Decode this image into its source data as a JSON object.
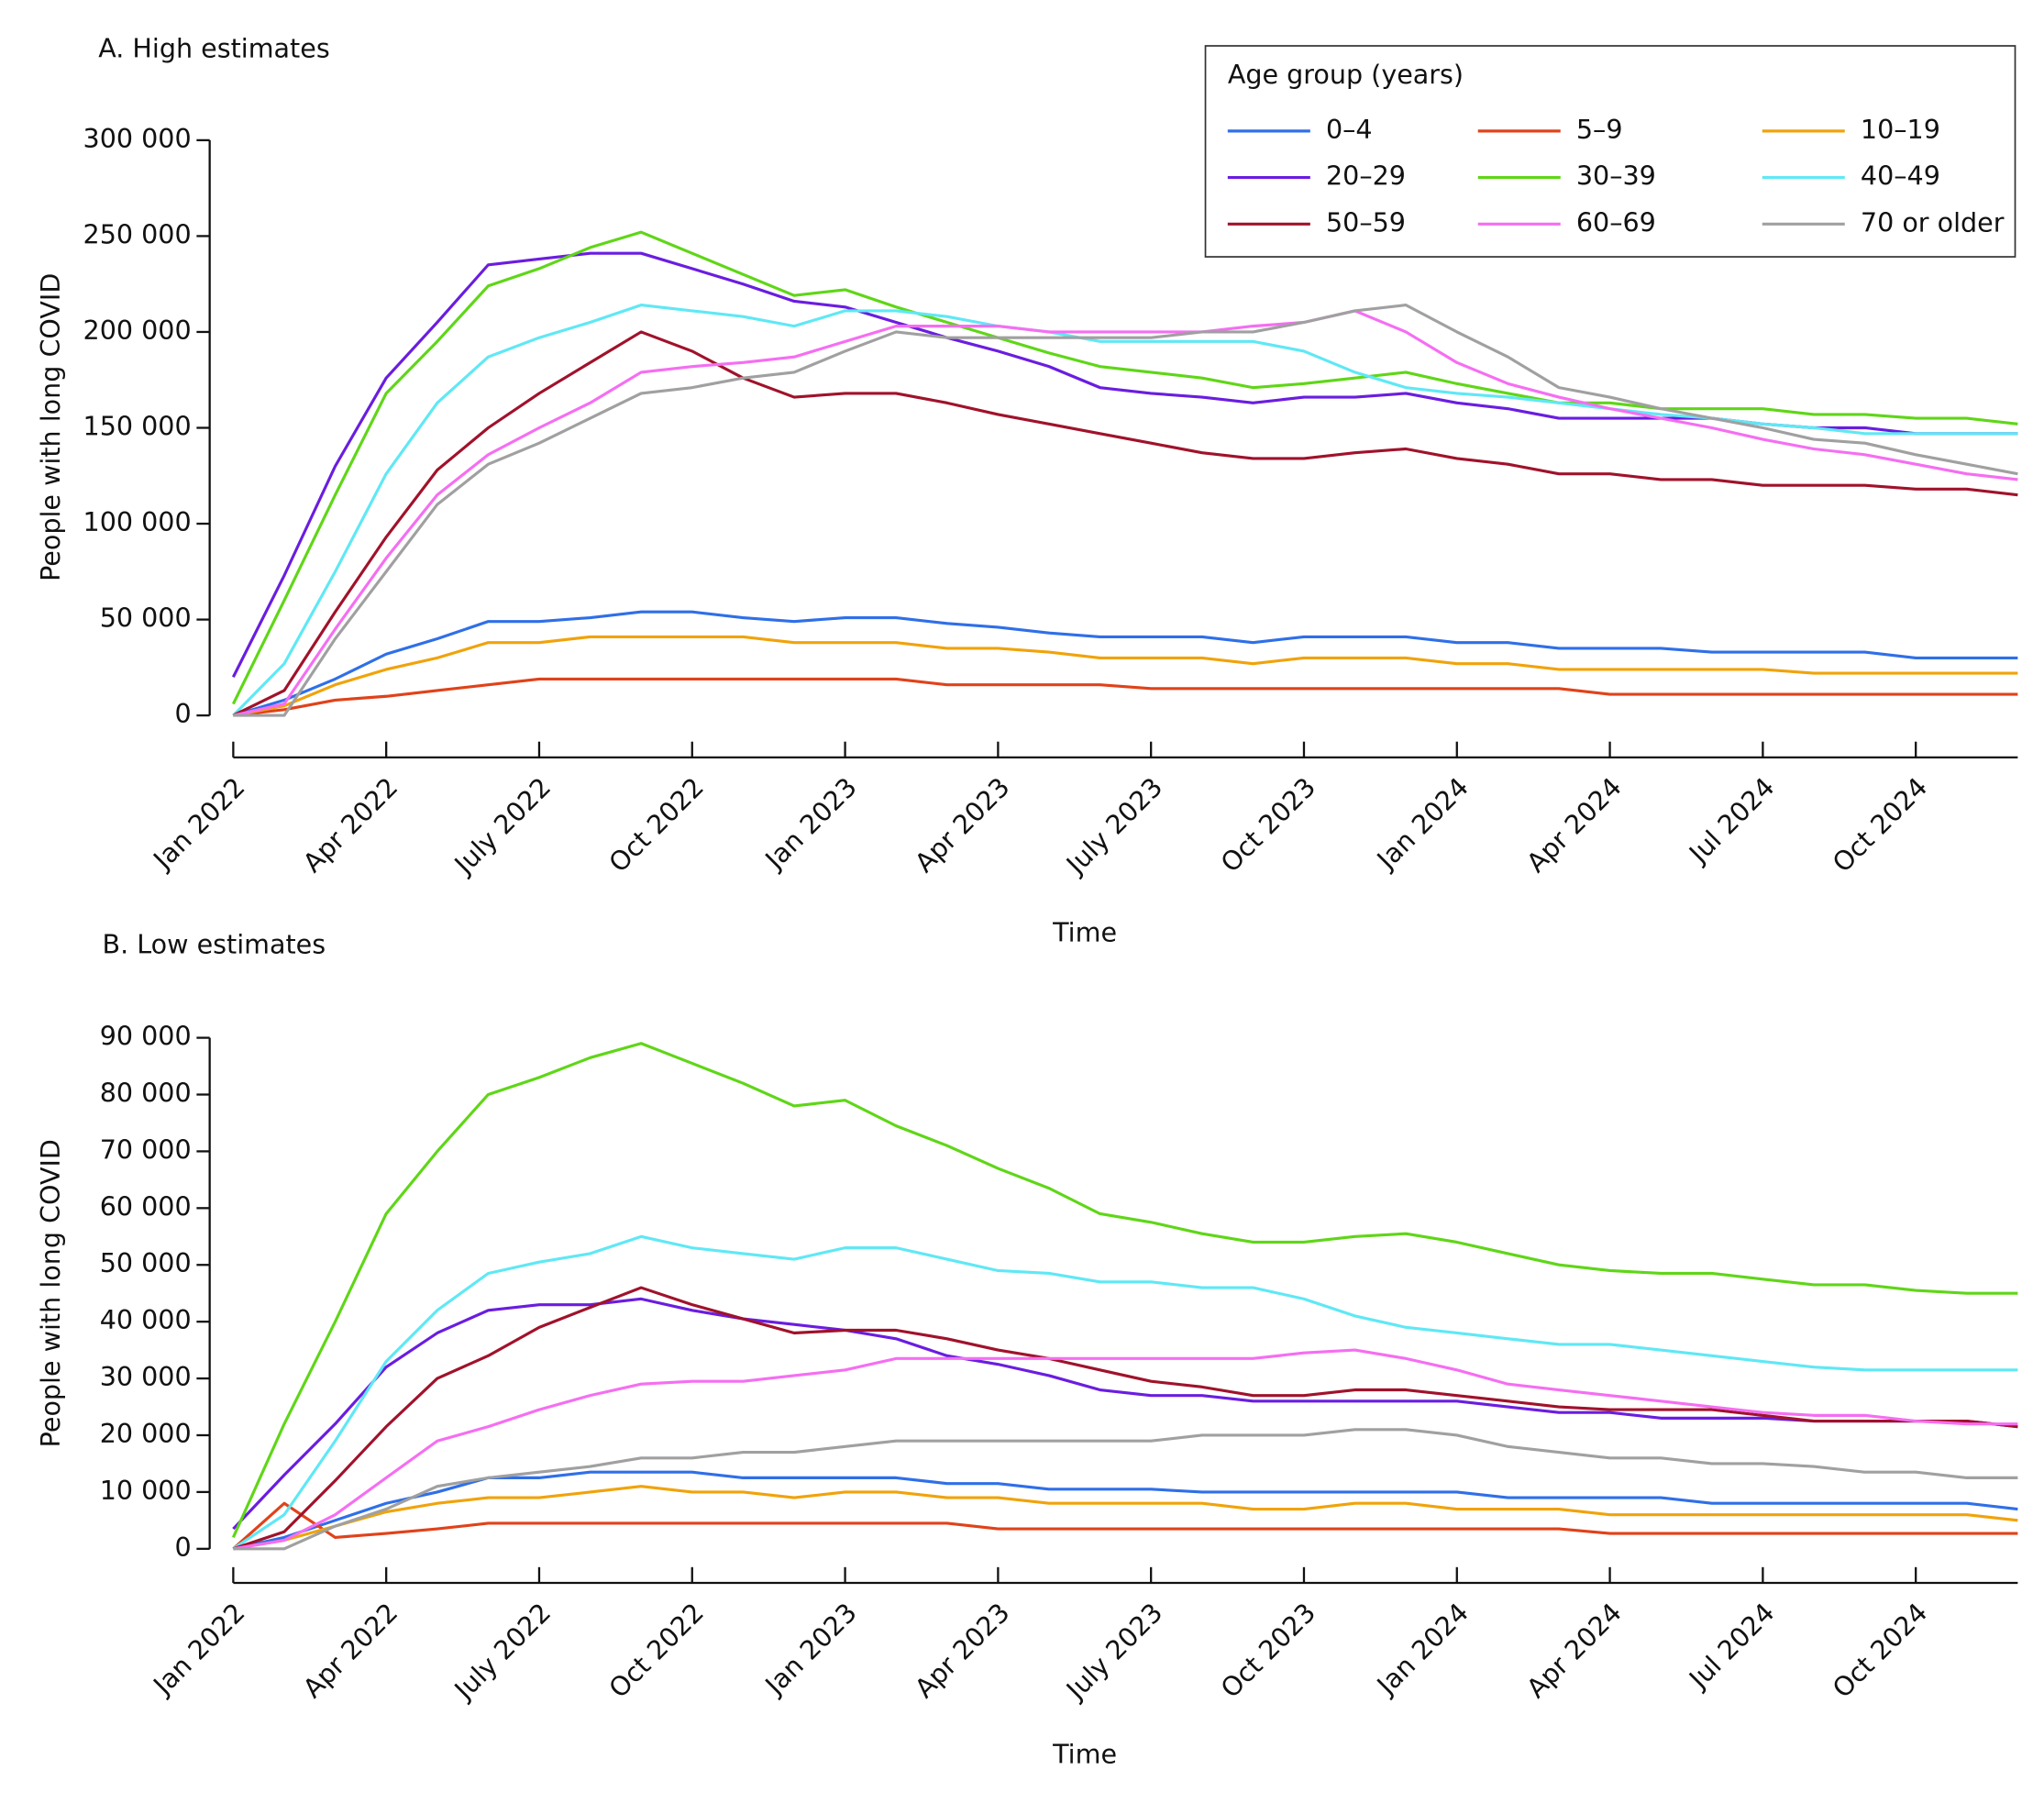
{
  "chart_data": [
    {
      "type": "line",
      "title": "A. High estimates",
      "y_label": "People with long COVID",
      "x_label": "Time",
      "legend_title": "Age group (years)",
      "categories": [
        "Jan 2022",
        null,
        null,
        "Apr 2022",
        null,
        null,
        "July 2022",
        null,
        null,
        "Oct 2022",
        null,
        null,
        "Jan 2023",
        null,
        null,
        "Apr 2023",
        null,
        null,
        "July 2023",
        null,
        null,
        "Oct 2023",
        null,
        null,
        "Jan 2024",
        null,
        null,
        "Apr 2024",
        null,
        null,
        "Jul 2024",
        null,
        null,
        "Oct 2024",
        null,
        null
      ],
      "ylim": [
        0,
        300000
      ],
      "yticks": [
        0,
        {
          "value": 50000,
          "label": "50 000"
        },
        {
          "value": 100000,
          "label": "100 000"
        },
        {
          "value": 150000,
          "label": "150 000"
        },
        {
          "value": 200000,
          "label": "200 000"
        },
        {
          "value": 250000,
          "label": "250 000"
        },
        {
          "value": 300000,
          "label": "300 000"
        }
      ],
      "series": [
        {
          "name": "0–4",
          "color": "#2f6fe8",
          "values": [
            0,
            8000,
            19000,
            32000,
            40000,
            49000,
            49000,
            51000,
            54000,
            54000,
            51000,
            49000,
            51000,
            51000,
            48000,
            46000,
            43000,
            41000,
            41000,
            41000,
            38000,
            41000,
            41000,
            41000,
            38000,
            38000,
            35000,
            35000,
            35000,
            33000,
            33000,
            33000,
            33000,
            30000,
            30000,
            30000
          ]
        },
        {
          "name": "5–9",
          "color": "#e0421a",
          "values": [
            0,
            3000,
            8000,
            10000,
            13000,
            16000,
            19000,
            19000,
            19000,
            19000,
            19000,
            19000,
            19000,
            19000,
            16000,
            16000,
            16000,
            16000,
            14000,
            14000,
            14000,
            14000,
            14000,
            14000,
            14000,
            14000,
            14000,
            11000,
            11000,
            11000,
            11000,
            11000,
            11000,
            11000,
            11000,
            11000
          ]
        },
        {
          "name": "10–19",
          "color": "#f0a30a",
          "values": [
            0,
            5000,
            16000,
            24000,
            30000,
            38000,
            38000,
            41000,
            41000,
            41000,
            41000,
            38000,
            38000,
            38000,
            35000,
            35000,
            33000,
            30000,
            30000,
            30000,
            27000,
            30000,
            30000,
            30000,
            27000,
            27000,
            24000,
            24000,
            24000,
            24000,
            24000,
            22000,
            22000,
            22000,
            22000,
            22000
          ]
        },
        {
          "name": "20–29",
          "color": "#6a1de0",
          "values": [
            20000,
            73000,
            130000,
            176000,
            205000,
            235000,
            238000,
            241000,
            241000,
            233000,
            225000,
            216000,
            213000,
            205000,
            197000,
            190000,
            182000,
            171000,
            168000,
            166000,
            163000,
            166000,
            166000,
            168000,
            163000,
            160000,
            155000,
            155000,
            155000,
            155000,
            152000,
            150000,
            150000,
            147000,
            147000,
            147000
          ]
        },
        {
          "name": "30–39",
          "color": "#5fd617",
          "values": [
            6000,
            60000,
            115000,
            168000,
            195000,
            224000,
            233000,
            244000,
            252000,
            241000,
            230000,
            219000,
            222000,
            213000,
            205000,
            197000,
            189000,
            182000,
            179000,
            176000,
            171000,
            173000,
            176000,
            179000,
            173000,
            168000,
            163000,
            163000,
            160000,
            160000,
            160000,
            157000,
            157000,
            155000,
            155000,
            152000
          ]
        },
        {
          "name": "40–49",
          "color": "#5fe8f5",
          "values": [
            0,
            27000,
            75000,
            126000,
            163000,
            187000,
            197000,
            205000,
            214000,
            211000,
            208000,
            203000,
            211000,
            211000,
            208000,
            203000,
            200000,
            195000,
            195000,
            195000,
            195000,
            190000,
            179000,
            171000,
            168000,
            166000,
            163000,
            160000,
            157000,
            155000,
            152000,
            150000,
            147000,
            147000,
            147000,
            147000
          ]
        },
        {
          "name": "50–59",
          "color": "#a0122b",
          "values": [
            0,
            13000,
            54000,
            93000,
            128000,
            150000,
            168000,
            184000,
            200000,
            190000,
            176000,
            166000,
            168000,
            168000,
            163000,
            157000,
            152000,
            147000,
            142000,
            137000,
            134000,
            134000,
            137000,
            139000,
            134000,
            131000,
            126000,
            126000,
            123000,
            123000,
            120000,
            120000,
            120000,
            118000,
            118000,
            115000
          ]
        },
        {
          "name": "60–69",
          "color": "#f56ef2",
          "values": [
            0,
            6000,
            45000,
            82000,
            115000,
            136000,
            150000,
            163000,
            179000,
            182000,
            184000,
            187000,
            195000,
            203000,
            203000,
            203000,
            200000,
            200000,
            200000,
            200000,
            203000,
            205000,
            211000,
            200000,
            184000,
            173000,
            166000,
            160000,
            155000,
            150000,
            144000,
            139000,
            136000,
            131000,
            126000,
            123000
          ]
        },
        {
          "name": "70 or older",
          "color": "#a0a0a0",
          "values": [
            0,
            0,
            40000,
            75000,
            110000,
            131000,
            142000,
            155000,
            168000,
            171000,
            176000,
            179000,
            190000,
            200000,
            197000,
            197000,
            197000,
            197000,
            197000,
            200000,
            200000,
            205000,
            211000,
            214000,
            200000,
            187000,
            171000,
            166000,
            160000,
            155000,
            150000,
            144000,
            142000,
            136000,
            131000,
            126000
          ]
        }
      ]
    },
    {
      "type": "line",
      "title": "B. Low estimates",
      "y_label": "People with long COVID",
      "x_label": "Time",
      "categories": [
        "Jan 2022",
        null,
        null,
        "Apr 2022",
        null,
        null,
        "July 2022",
        null,
        null,
        "Oct 2022",
        null,
        null,
        "Jan 2023",
        null,
        null,
        "Apr 2023",
        null,
        null,
        "July 2023",
        null,
        null,
        "Oct 2023",
        null,
        null,
        "Jan 2024",
        null,
        null,
        "Apr 2024",
        null,
        null,
        "Jul 2024",
        null,
        null,
        "Oct 2024",
        null,
        null
      ],
      "ylim": [
        0,
        90000
      ],
      "yticks": [
        0,
        {
          "value": 10000,
          "label": "10 000"
        },
        {
          "value": 20000,
          "label": "20 000"
        },
        {
          "value": 30000,
          "label": "30 000"
        },
        {
          "value": 40000,
          "label": "40 000"
        },
        {
          "value": 50000,
          "label": "50 000"
        },
        {
          "value": 60000,
          "label": "60 000"
        },
        {
          "value": 70000,
          "label": "70 000"
        },
        {
          "value": 80000,
          "label": "80 000"
        },
        {
          "value": 90000,
          "label": "90 000"
        }
      ],
      "series": [
        {
          "color": "#2f6fe8",
          "values": [
            0,
            2000,
            5000,
            8000,
            10000,
            12500,
            12500,
            13500,
            13500,
            13500,
            12500,
            12500,
            12500,
            12500,
            11500,
            11500,
            10500,
            10500,
            10500,
            10000,
            10000,
            10000,
            10000,
            10000,
            10000,
            9000,
            9000,
            9000,
            9000,
            8000,
            8000,
            8000,
            8000,
            8000,
            8000,
            7000
          ]
        },
        {
          "color": "#e0421a",
          "values": [
            0,
            8000,
            2000,
            2700,
            3500,
            4500,
            4500,
            4500,
            4500,
            4500,
            4500,
            4500,
            4500,
            4500,
            4500,
            3500,
            3500,
            3500,
            3500,
            3500,
            3500,
            3500,
            3500,
            3500,
            3500,
            3500,
            3500,
            2700,
            2700,
            2700,
            2700,
            2700,
            2700,
            2700,
            2700,
            2700
          ]
        },
        {
          "color": "#f0a30a",
          "values": [
            0,
            1500,
            4000,
            6500,
            8000,
            9000,
            9000,
            10000,
            11000,
            10000,
            10000,
            9000,
            10000,
            10000,
            9000,
            9000,
            8000,
            8000,
            8000,
            8000,
            7000,
            7000,
            8000,
            8000,
            7000,
            7000,
            7000,
            6000,
            6000,
            6000,
            6000,
            6000,
            6000,
            6000,
            6000,
            5000
          ]
        },
        {
          "color": "#6a1de0",
          "values": [
            3500,
            13000,
            22000,
            32000,
            38000,
            42000,
            43000,
            43000,
            44000,
            42000,
            40500,
            39500,
            38500,
            37000,
            34000,
            32500,
            30500,
            28000,
            27000,
            27000,
            26000,
            26000,
            26000,
            26000,
            26000,
            25000,
            24000,
            24000,
            23000,
            23000,
            23000,
            22500,
            22500,
            22500,
            22500,
            21500
          ]
        },
        {
          "color": "#5fd617",
          "values": [
            2000,
            22000,
            40000,
            59000,
            70000,
            80000,
            83000,
            86500,
            89000,
            85500,
            82000,
            78000,
            79000,
            74500,
            71000,
            67000,
            63500,
            59000,
            57500,
            55500,
            54000,
            54000,
            55000,
            55500,
            54000,
            52000,
            50000,
            49000,
            48500,
            48500,
            47500,
            46500,
            46500,
            45500,
            45000,
            45000
          ]
        },
        {
          "color": "#5fe8f5",
          "values": [
            0,
            6000,
            19000,
            33000,
            42000,
            48500,
            50500,
            52000,
            55000,
            53000,
            52000,
            51000,
            53000,
            53000,
            51000,
            49000,
            48500,
            47000,
            47000,
            46000,
            46000,
            44000,
            41000,
            39000,
            38000,
            37000,
            36000,
            36000,
            35000,
            34000,
            33000,
            32000,
            31500,
            31500,
            31500,
            31500
          ]
        },
        {
          "color": "#a0122b",
          "values": [
            0,
            3000,
            12000,
            21500,
            30000,
            34000,
            39000,
            42500,
            46000,
            43000,
            40500,
            38000,
            38500,
            38500,
            37000,
            35000,
            33500,
            31500,
            29500,
            28500,
            27000,
            27000,
            28000,
            28000,
            27000,
            26000,
            25000,
            24500,
            24500,
            24500,
            23500,
            22500,
            22500,
            22500,
            22500,
            21500
          ]
        },
        {
          "color": "#f56ef2",
          "values": [
            0,
            1500,
            6000,
            12500,
            19000,
            21500,
            24500,
            27000,
            29000,
            29500,
            29500,
            30500,
            31500,
            33500,
            33500,
            33500,
            33500,
            33500,
            33500,
            33500,
            33500,
            34500,
            35000,
            33500,
            31500,
            29000,
            28000,
            27000,
            26000,
            25000,
            24000,
            23500,
            23500,
            22500,
            22000,
            22000
          ]
        },
        {
          "color": "#a0a0a0",
          "values": [
            0,
            0,
            4000,
            7000,
            11000,
            12500,
            13500,
            14500,
            16000,
            16000,
            17000,
            17000,
            18000,
            19000,
            19000,
            19000,
            19000,
            19000,
            19000,
            20000,
            20000,
            20000,
            21000,
            21000,
            20000,
            18000,
            17000,
            16000,
            16000,
            15000,
            15000,
            14500,
            13500,
            13500,
            12500,
            12500
          ]
        }
      ]
    }
  ]
}
